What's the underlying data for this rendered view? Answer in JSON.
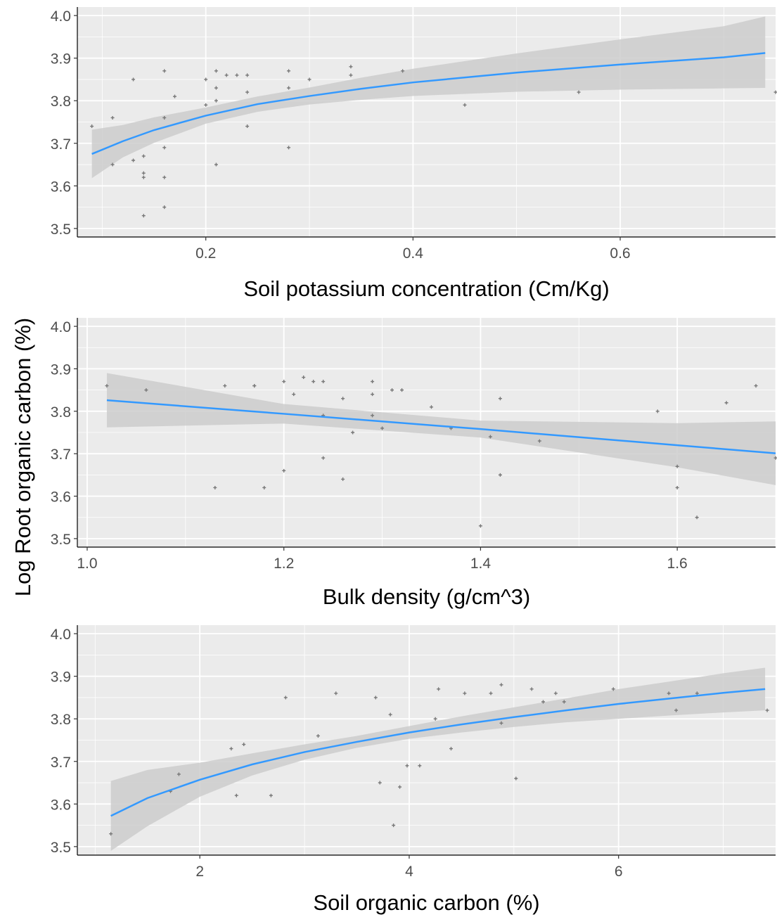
{
  "shared_ylabel": "Log Root organic carbon (%)",
  "chart_data": [
    {
      "type": "scatter",
      "xlabel": "Soil potassium concentration (Cm/Kg)",
      "ylabel": "Log Root organic carbon (%)",
      "xlim": [
        0.076,
        0.75
      ],
      "ylim": [
        3.48,
        4.02
      ],
      "xticks": [
        0.2,
        0.4,
        0.6
      ],
      "xtick_labels": [
        "0.2",
        "0.4",
        "0.6"
      ],
      "yticks": [
        3.5,
        3.6,
        3.7,
        3.8,
        3.9,
        4.0
      ],
      "ytick_labels": [
        "3.5",
        "3.6",
        "3.7",
        "3.8",
        "3.9",
        "4.0"
      ],
      "grid": true,
      "points": [
        {
          "x": 0.09,
          "y": 3.74
        },
        {
          "x": 0.11,
          "y": 3.76
        },
        {
          "x": 0.11,
          "y": 3.65
        },
        {
          "x": 0.13,
          "y": 3.85
        },
        {
          "x": 0.13,
          "y": 3.66
        },
        {
          "x": 0.14,
          "y": 3.67
        },
        {
          "x": 0.14,
          "y": 3.63
        },
        {
          "x": 0.14,
          "y": 3.62
        },
        {
          "x": 0.14,
          "y": 3.53
        },
        {
          "x": 0.16,
          "y": 3.87
        },
        {
          "x": 0.16,
          "y": 3.76
        },
        {
          "x": 0.16,
          "y": 3.69
        },
        {
          "x": 0.16,
          "y": 3.62
        },
        {
          "x": 0.16,
          "y": 3.55
        },
        {
          "x": 0.17,
          "y": 3.81
        },
        {
          "x": 0.2,
          "y": 3.85
        },
        {
          "x": 0.2,
          "y": 3.79
        },
        {
          "x": 0.21,
          "y": 3.87
        },
        {
          "x": 0.21,
          "y": 3.83
        },
        {
          "x": 0.21,
          "y": 3.8
        },
        {
          "x": 0.21,
          "y": 3.65
        },
        {
          "x": 0.22,
          "y": 3.86
        },
        {
          "x": 0.23,
          "y": 3.86
        },
        {
          "x": 0.24,
          "y": 3.86
        },
        {
          "x": 0.24,
          "y": 3.82
        },
        {
          "x": 0.24,
          "y": 3.74
        },
        {
          "x": 0.28,
          "y": 3.87
        },
        {
          "x": 0.28,
          "y": 3.83
        },
        {
          "x": 0.28,
          "y": 3.69
        },
        {
          "x": 0.3,
          "y": 3.85
        },
        {
          "x": 0.34,
          "y": 3.88
        },
        {
          "x": 0.34,
          "y": 3.86
        },
        {
          "x": 0.39,
          "y": 3.87
        },
        {
          "x": 0.45,
          "y": 3.79
        },
        {
          "x": 0.56,
          "y": 3.82
        },
        {
          "x": 0.75,
          "y": 3.82
        }
      ],
      "fit": {
        "x": [
          0.09,
          0.12,
          0.15,
          0.2,
          0.25,
          0.3,
          0.35,
          0.4,
          0.5,
          0.6,
          0.7,
          0.74
        ],
        "y": [
          3.675,
          3.705,
          3.731,
          3.765,
          3.792,
          3.811,
          3.828,
          3.843,
          3.866,
          3.885,
          3.902,
          3.912
        ],
        "lower": [
          3.618,
          3.667,
          3.701,
          3.746,
          3.774,
          3.791,
          3.802,
          3.811,
          3.821,
          3.826,
          3.829,
          3.83
        ],
        "upper": [
          3.732,
          3.743,
          3.761,
          3.784,
          3.81,
          3.831,
          3.854,
          3.875,
          3.911,
          3.944,
          3.975,
          3.998
        ]
      },
      "colors": {
        "line": "#3399ff",
        "band": "#cccccc",
        "panel": "#ebebeb",
        "point": "#777777"
      }
    },
    {
      "type": "scatter",
      "xlabel": "Bulk density (g/cm^3)",
      "ylabel": "Log Root organic carbon (%)",
      "xlim": [
        0.99,
        1.7
      ],
      "ylim": [
        3.48,
        4.02
      ],
      "xticks": [
        1.0,
        1.2,
        1.4,
        1.6
      ],
      "xtick_labels": [
        "1.0",
        "1.2",
        "1.4",
        "1.6"
      ],
      "yticks": [
        3.5,
        3.6,
        3.7,
        3.8,
        3.9,
        4.0
      ],
      "ytick_labels": [
        "3.5",
        "3.6",
        "3.7",
        "3.8",
        "3.9",
        "4.0"
      ],
      "grid": true,
      "points": [
        {
          "x": 1.02,
          "y": 3.86
        },
        {
          "x": 1.06,
          "y": 3.85
        },
        {
          "x": 1.13,
          "y": 3.62
        },
        {
          "x": 1.14,
          "y": 3.86
        },
        {
          "x": 1.17,
          "y": 3.86
        },
        {
          "x": 1.17,
          "y": 3.86
        },
        {
          "x": 1.18,
          "y": 3.62
        },
        {
          "x": 1.2,
          "y": 3.87
        },
        {
          "x": 1.2,
          "y": 3.66
        },
        {
          "x": 1.21,
          "y": 3.84
        },
        {
          "x": 1.22,
          "y": 3.88
        },
        {
          "x": 1.23,
          "y": 3.87
        },
        {
          "x": 1.24,
          "y": 3.87
        },
        {
          "x": 1.24,
          "y": 3.79
        },
        {
          "x": 1.24,
          "y": 3.69
        },
        {
          "x": 1.26,
          "y": 3.83
        },
        {
          "x": 1.26,
          "y": 3.64
        },
        {
          "x": 1.27,
          "y": 3.75
        },
        {
          "x": 1.29,
          "y": 3.87
        },
        {
          "x": 1.29,
          "y": 3.84
        },
        {
          "x": 1.29,
          "y": 3.79
        },
        {
          "x": 1.3,
          "y": 3.76
        },
        {
          "x": 1.31,
          "y": 3.85
        },
        {
          "x": 1.32,
          "y": 3.85
        },
        {
          "x": 1.35,
          "y": 3.81
        },
        {
          "x": 1.37,
          "y": 3.76
        },
        {
          "x": 1.4,
          "y": 3.53
        },
        {
          "x": 1.41,
          "y": 3.74
        },
        {
          "x": 1.42,
          "y": 3.83
        },
        {
          "x": 1.42,
          "y": 3.65
        },
        {
          "x": 1.46,
          "y": 3.73
        },
        {
          "x": 1.58,
          "y": 3.8
        },
        {
          "x": 1.6,
          "y": 3.67
        },
        {
          "x": 1.6,
          "y": 3.62
        },
        {
          "x": 1.62,
          "y": 3.55
        },
        {
          "x": 1.65,
          "y": 3.82
        },
        {
          "x": 1.68,
          "y": 3.86
        },
        {
          "x": 1.7,
          "y": 3.69
        }
      ],
      "fit": {
        "x": [
          1.02,
          1.2,
          1.4,
          1.6,
          1.7
        ],
        "y": [
          3.826,
          3.794,
          3.758,
          3.72,
          3.701
        ],
        "lower": [
          3.762,
          3.771,
          3.738,
          3.668,
          3.626
        ],
        "upper": [
          3.89,
          3.817,
          3.778,
          3.772,
          3.776
        ]
      },
      "colors": {
        "line": "#3399ff",
        "band": "#cccccc",
        "panel": "#ebebeb",
        "point": "#777777"
      }
    },
    {
      "type": "scatter",
      "xlabel": "Soil organic carbon (%)",
      "ylabel": "Log Root organic carbon (%)",
      "xlim": [
        0.83,
        7.5
      ],
      "ylim": [
        3.48,
        4.02
      ],
      "xticks": [
        2,
        4,
        6
      ],
      "xtick_labels": [
        "2",
        "4",
        "6"
      ],
      "yticks": [
        3.5,
        3.6,
        3.7,
        3.8,
        3.9,
        4.0
      ],
      "ytick_labels": [
        "3.5",
        "3.6",
        "3.7",
        "3.8",
        "3.9",
        "4.0"
      ],
      "grid": true,
      "points": [
        {
          "x": 1.15,
          "y": 3.53
        },
        {
          "x": 1.72,
          "y": 3.63
        },
        {
          "x": 1.8,
          "y": 3.67
        },
        {
          "x": 2.3,
          "y": 3.73
        },
        {
          "x": 2.35,
          "y": 3.62
        },
        {
          "x": 2.42,
          "y": 3.74
        },
        {
          "x": 2.68,
          "y": 3.62
        },
        {
          "x": 2.82,
          "y": 3.85
        },
        {
          "x": 3.13,
          "y": 3.76
        },
        {
          "x": 3.3,
          "y": 3.86
        },
        {
          "x": 3.68,
          "y": 3.85
        },
        {
          "x": 3.72,
          "y": 3.65
        },
        {
          "x": 3.82,
          "y": 3.81
        },
        {
          "x": 3.85,
          "y": 3.55
        },
        {
          "x": 3.91,
          "y": 3.64
        },
        {
          "x": 3.98,
          "y": 3.69
        },
        {
          "x": 4.1,
          "y": 3.69
        },
        {
          "x": 4.25,
          "y": 3.8
        },
        {
          "x": 4.28,
          "y": 3.87
        },
        {
          "x": 4.4,
          "y": 3.73
        },
        {
          "x": 4.53,
          "y": 3.86
        },
        {
          "x": 4.78,
          "y": 3.86
        },
        {
          "x": 4.88,
          "y": 3.88
        },
        {
          "x": 4.88,
          "y": 3.79
        },
        {
          "x": 5.02,
          "y": 3.66
        },
        {
          "x": 5.17,
          "y": 3.87
        },
        {
          "x": 5.28,
          "y": 3.84
        },
        {
          "x": 5.4,
          "y": 3.86
        },
        {
          "x": 5.48,
          "y": 3.84
        },
        {
          "x": 5.95,
          "y": 3.87
        },
        {
          "x": 6.48,
          "y": 3.86
        },
        {
          "x": 6.55,
          "y": 3.82
        },
        {
          "x": 6.75,
          "y": 3.86
        },
        {
          "x": 7.42,
          "y": 3.82
        }
      ],
      "fit": {
        "x": [
          1.15,
          1.5,
          2,
          2.5,
          3,
          3.5,
          4,
          4.5,
          5,
          5.5,
          6,
          6.5,
          7,
          7.4
        ],
        "y": [
          3.572,
          3.614,
          3.657,
          3.693,
          3.722,
          3.746,
          3.768,
          3.787,
          3.804,
          3.82,
          3.835,
          3.848,
          3.861,
          3.87
        ],
        "lower": [
          3.49,
          3.548,
          3.617,
          3.667,
          3.704,
          3.732,
          3.753,
          3.768,
          3.781,
          3.792,
          3.8,
          3.808,
          3.815,
          3.82
        ],
        "upper": [
          3.654,
          3.68,
          3.697,
          3.719,
          3.74,
          3.76,
          3.783,
          3.806,
          3.827,
          3.848,
          3.87,
          3.888,
          3.907,
          3.92
        ]
      },
      "colors": {
        "line": "#3399ff",
        "band": "#cccccc",
        "panel": "#ebebeb",
        "point": "#777777"
      }
    }
  ]
}
